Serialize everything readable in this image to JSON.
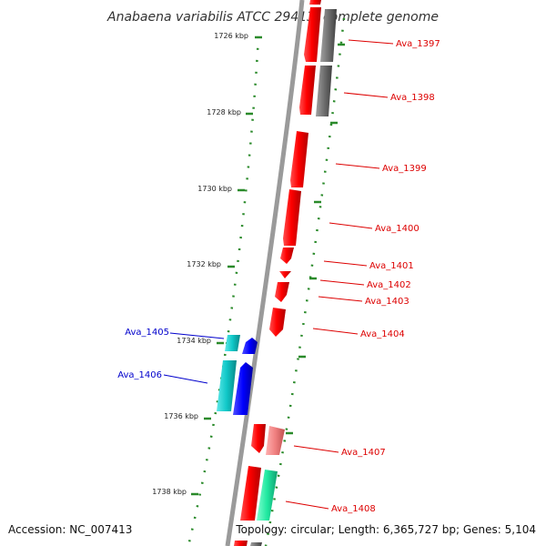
{
  "title": "Anabaena variabilis ATCC 29413, complete genome",
  "footer": {
    "accession": "Accession: NC_007413",
    "topology": "Topology: circular; Length: 6,365,727 bp; Genes: 5,104"
  },
  "colors": {
    "forward_gene": "#ff0000",
    "forward_gene_pale": "#f08080",
    "reverse_gene": "#0000ff",
    "reverse_gene_cyan": "#10c8c8",
    "other_gene_gray": "#707070",
    "green_gene": "#20e8a0",
    "backbone": "#9a9a9a",
    "scale_dots": "#2a8a2a",
    "label_red": "#dd0000",
    "label_blue": "#0000cc"
  },
  "scale_ticks": [
    "1726 kbp",
    "1728 kbp",
    "1730 kbp",
    "1732 kbp",
    "1734 kbp",
    "1736 kbp",
    "1738 kbp"
  ],
  "gene_labels_right": [
    "Ava_1397",
    "Ava_1398",
    "Ava_1399",
    "Ava_1400",
    "Ava_1401",
    "Ava_1402",
    "Ava_1403",
    "Ava_1404",
    "Ava_1407",
    "Ava_1408"
  ],
  "gene_labels_left": [
    "Ava_1405",
    "Ava_1406"
  ]
}
